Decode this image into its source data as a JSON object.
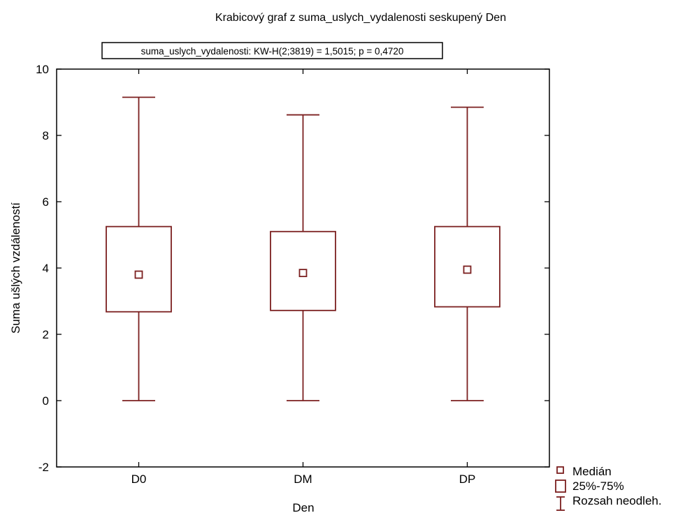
{
  "chart_data": {
    "type": "box",
    "title": "Krabicový graf z suma_uslych_vydalenosti seskupený  Den",
    "test_annotation": "suma_uslych_vydalenosti:  KW-H(2;3819) = 1,5015; p = 0,4720",
    "xlabel": "Den",
    "ylabel": "Suma ušlých vzdáleností",
    "ylim": [
      -2,
      10
    ],
    "yticks": [
      -2,
      0,
      2,
      4,
      6,
      8,
      10
    ],
    "categories": [
      "D0",
      "DM",
      "DP"
    ],
    "boxes": [
      {
        "category": "D0",
        "min": 0,
        "q1": 2.68,
        "median": 3.8,
        "q3": 5.25,
        "max": 9.15
      },
      {
        "category": "DM",
        "min": 0,
        "q1": 2.72,
        "median": 3.85,
        "q3": 5.1,
        "max": 8.62
      },
      {
        "category": "DP",
        "min": 0,
        "q1": 2.83,
        "median": 3.95,
        "q3": 5.25,
        "max": 8.85
      }
    ],
    "legend": {
      "position": "bottom-right",
      "entries": [
        "Medián",
        "25%-75%",
        "Rozsah neodleh."
      ]
    },
    "grid": false,
    "color": "#7b1f1f"
  }
}
